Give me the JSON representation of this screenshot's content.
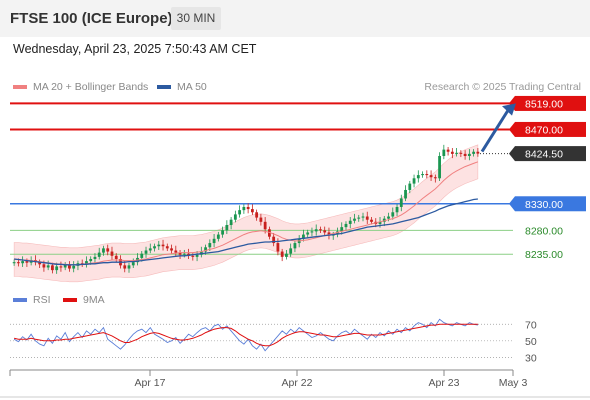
{
  "header": {
    "title": "FTSE 100 (ICE Europe)",
    "timeframe": "30 MIN",
    "datetime": "Wednesday, April 23, 2025 7:50:43 AM CET"
  },
  "legend": {
    "ma20_label": "MA 20 + Bollinger Bands",
    "ma50_label": "MA 50",
    "credit": "Research © 2025 Trading Central",
    "rsi_label": "RSI",
    "ma9_label": "9MA"
  },
  "colors": {
    "up": "#1a9650",
    "down": "#c8201e",
    "resistance": "#e01010",
    "pivot": "#3a78e0",
    "support": "#8ccf86",
    "band_fill": "#fde2e2",
    "ma50": "#2c5aa0",
    "rsi": "#5b7fd8",
    "rsi_ma": "#e01010",
    "arrow": "#2c5aa0"
  },
  "chart_data": [
    {
      "type": "candlestick",
      "x_ticks": [
        "Apr 17",
        "Apr 22",
        "Apr 23",
        "May 3"
      ],
      "levels": [
        {
          "value": 8519.0,
          "label": "8519.00",
          "kind": "resistance"
        },
        {
          "value": 8470.0,
          "label": "8470.00",
          "kind": "resistance"
        },
        {
          "value": 8424.5,
          "label": "8424.50",
          "kind": "last"
        },
        {
          "value": 8330.0,
          "label": "8330.00",
          "kind": "pivot"
        },
        {
          "value": 8280.0,
          "label": "8280.00",
          "kind": "support"
        },
        {
          "value": 8235.0,
          "label": "8235.00",
          "kind": "support"
        }
      ],
      "ylim": [
        8177,
        8533
      ],
      "closes": [
        8220,
        8218,
        8222,
        8219,
        8224,
        8220,
        8216,
        8210,
        8214,
        8205,
        8212,
        8210,
        8215,
        8208,
        8213,
        8218,
        8216,
        8222,
        8226,
        8230,
        8238,
        8246,
        8240,
        8232,
        8226,
        8214,
        8208,
        8214,
        8220,
        8228,
        8236,
        8242,
        8246,
        8250,
        8253,
        8250,
        8246,
        8242,
        8238,
        8234,
        8236,
        8232,
        8230,
        8234,
        8240,
        8248,
        8256,
        8264,
        8272,
        8280,
        8290,
        8300,
        8310,
        8318,
        8324,
        8320,
        8314,
        8304,
        8296,
        8282,
        8268,
        8256,
        8240,
        8230,
        8236,
        8246,
        8256,
        8264,
        8272,
        8276,
        8278,
        8282,
        8280,
        8276,
        8270,
        8272,
        8278,
        8286,
        8292,
        8298,
        8302,
        8304,
        8306,
        8300,
        8296,
        8292,
        8296,
        8302,
        8306,
        8314,
        8324,
        8340,
        8356,
        8368,
        8378,
        8384,
        8386,
        8384,
        8380,
        8378,
        8420,
        8432,
        8428,
        8424,
        8426,
        8424,
        8420,
        8424,
        8428,
        8424.5
      ],
      "ma50": [
        8226,
        8225,
        8224,
        8223,
        8222,
        8221,
        8220,
        8219,
        8218,
        8217,
        8216,
        8216,
        8215,
        8215,
        8215,
        8215,
        8216,
        8216,
        8217,
        8217,
        8218,
        8219,
        8219,
        8220,
        8220,
        8220,
        8220,
        8221,
        8221,
        8222,
        8223,
        8224,
        8225,
        8226,
        8227,
        8228,
        8229,
        8230,
        8231,
        8232,
        8232,
        8233,
        8234,
        8235,
        8236,
        8237,
        8238,
        8239,
        8240,
        8242,
        8244,
        8246,
        8248,
        8250,
        8252,
        8254,
        8255,
        8256,
        8257,
        8258,
        8258,
        8259,
        8259,
        8260,
        8261,
        8262,
        8263,
        8264,
        8265,
        8266,
        8267,
        8268,
        8269,
        8270,
        8271,
        8272,
        8273,
        8274,
        8276,
        8278,
        8280,
        8282,
        8284,
        8286,
        8287,
        8288,
        8289,
        8290,
        8291,
        8292,
        8294,
        8296,
        8298,
        8300,
        8302,
        8304,
        8307,
        8310,
        8313,
        8316,
        8320,
        8323,
        8326,
        8328,
        8330,
        8332,
        8334,
        8336,
        8338,
        8339
      ],
      "ma20": [
        8225,
        8225,
        8224,
        8224,
        8223,
        8222,
        8221,
        8220,
        8219,
        8218,
        8217,
        8216,
        8216,
        8215,
        8215,
        8215,
        8216,
        8217,
        8218,
        8219,
        8220,
        8222,
        8223,
        8224,
        8224,
        8224,
        8223,
        8223,
        8223,
        8224,
        8225,
        8226,
        8228,
        8230,
        8232,
        8234,
        8235,
        8236,
        8237,
        8238,
        8238,
        8238,
        8238,
        8239,
        8240,
        8242,
        8244,
        8246,
        8249,
        8252,
        8256,
        8260,
        8264,
        8268,
        8272,
        8275,
        8277,
        8278,
        8279,
        8278,
        8276,
        8273,
        8270,
        8266,
        8263,
        8261,
        8260,
        8260,
        8261,
        8262,
        8264,
        8266,
        8268,
        8270,
        8272,
        8274,
        8276,
        8278,
        8280,
        8282,
        8284,
        8286,
        8288,
        8290,
        8292,
        8294,
        8296,
        8298,
        8300,
        8302,
        8305,
        8309,
        8314,
        8320,
        8326,
        8333,
        8340,
        8346,
        8352,
        8358,
        8366,
        8374,
        8381,
        8387,
        8392,
        8396,
        8400,
        8403,
        8406,
        8409
      ],
      "band_width": 32
    },
    {
      "type": "line",
      "name": "RSI",
      "ticks": [
        70,
        50,
        30
      ],
      "ylim": [
        22,
        80
      ],
      "rsi": [
        52,
        49,
        55,
        51,
        58,
        50,
        46,
        44,
        53,
        47,
        56,
        52,
        60,
        49,
        55,
        60,
        54,
        62,
        58,
        64,
        60,
        66,
        52,
        48,
        44,
        40,
        45,
        52,
        58,
        62,
        64,
        60,
        66,
        58,
        55,
        52,
        48,
        50,
        54,
        47,
        52,
        58,
        55,
        60,
        64,
        66,
        62,
        68,
        70,
        64,
        68,
        62,
        56,
        50,
        46,
        52,
        44,
        40,
        46,
        38,
        44,
        50,
        56,
        62,
        58,
        64,
        60,
        66,
        62,
        58,
        54,
        56,
        60,
        56,
        52,
        50,
        56,
        60,
        62,
        58,
        64,
        60,
        56,
        52,
        58,
        54,
        60,
        56,
        62,
        58,
        64,
        60,
        66,
        62,
        68,
        72,
        70,
        66,
        72,
        68,
        76,
        72,
        70,
        68,
        72,
        70,
        68,
        72,
        70,
        69
      ],
      "rsi_ma": [
        53,
        52,
        52,
        52,
        53,
        52,
        51,
        50,
        50,
        50,
        51,
        51,
        52,
        52,
        53,
        54,
        55,
        56,
        57,
        58,
        59,
        60,
        58,
        56,
        53,
        50,
        48,
        48,
        50,
        52,
        55,
        57,
        59,
        60,
        59,
        57,
        55,
        53,
        52,
        51,
        51,
        52,
        53,
        55,
        57,
        60,
        62,
        64,
        65,
        66,
        66,
        65,
        62,
        58,
        55,
        52,
        50,
        47,
        45,
        44,
        44,
        46,
        49,
        53,
        56,
        58,
        60,
        61,
        61,
        60,
        59,
        58,
        57,
        57,
        56,
        55,
        55,
        56,
        57,
        58,
        59,
        59,
        58,
        57,
        57,
        57,
        57,
        58,
        59,
        60,
        61,
        62,
        63,
        64,
        65,
        66,
        67,
        68,
        69,
        69,
        70,
        70,
        70,
        70,
        70,
        70,
        70,
        70,
        70,
        70
      ]
    }
  ]
}
